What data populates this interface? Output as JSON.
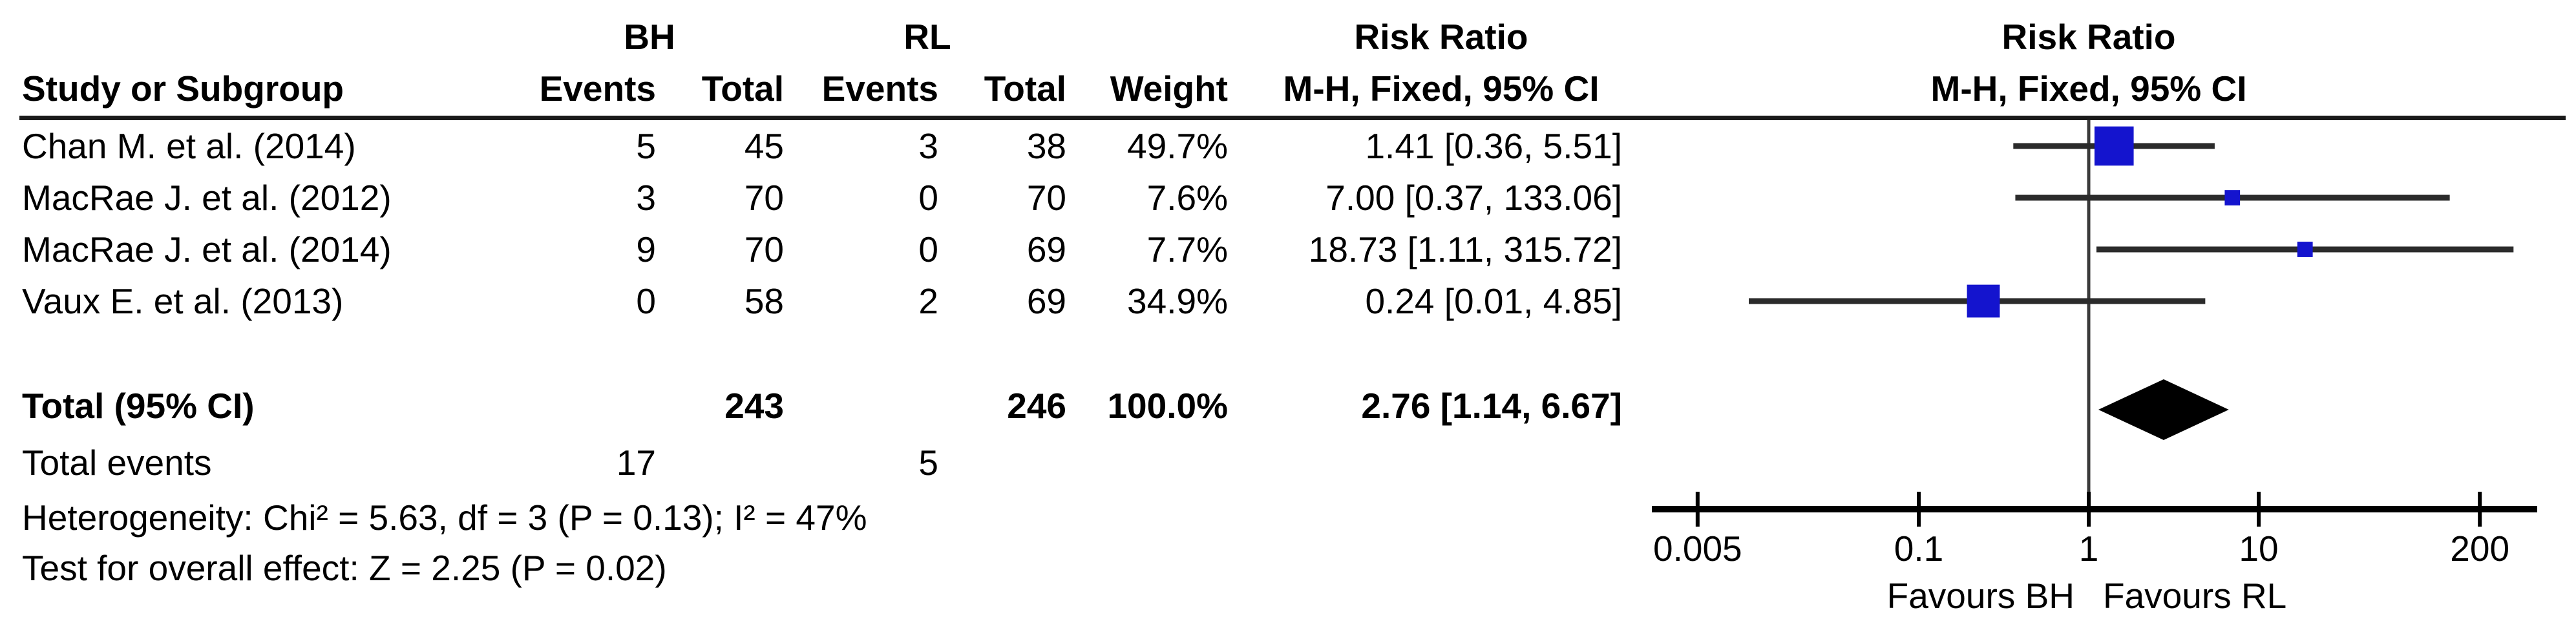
{
  "table": {
    "group_bh": "BH",
    "group_rl": "RL",
    "risk_ratio_header": "Risk Ratio",
    "ci_method_header": "M-H, Fixed, 95% CI",
    "plot_title": "Risk Ratio",
    "plot_subtitle": "M-H, Fixed, 95% CI",
    "col_study": "Study or Subgroup",
    "col_events": "Events",
    "col_total": "Total",
    "col_weight": "Weight",
    "rows": [
      {
        "study": "Chan M. et al. (2014)",
        "events_bh": "5",
        "total_bh": "45",
        "events_rl": "3",
        "total_rl": "38",
        "weight": "49.7%",
        "ci": "1.41 [0.36, 5.51]"
      },
      {
        "study": "MacRae J. et al. (2012)",
        "events_bh": "3",
        "total_bh": "70",
        "events_rl": "0",
        "total_rl": "70",
        "weight": "7.6%",
        "ci": "7.00 [0.37, 133.06]"
      },
      {
        "study": "MacRae J. et al. (2014)",
        "events_bh": "9",
        "total_bh": "70",
        "events_rl": "0",
        "total_rl": "69",
        "weight": "7.7%",
        "ci": "18.73 [1.11, 315.72]"
      },
      {
        "study": "Vaux E. et al. (2013)",
        "events_bh": "0",
        "total_bh": "58",
        "events_rl": "2",
        "total_rl": "69",
        "weight": "34.9%",
        "ci": "0.24 [0.01, 4.85]"
      }
    ],
    "total_row": {
      "label": "Total (95% CI)",
      "total_bh": "243",
      "total_rl": "246",
      "weight": "100.0%",
      "ci": "2.76 [1.14, 6.67]"
    },
    "total_events": {
      "label": "Total events",
      "bh": "17",
      "rl": "5"
    },
    "heterogeneity": "Heterogeneity: Chi² = 5.63, df = 3 (P = 0.13); I² = 47%",
    "overall_effect": "Test for overall effect: Z = 2.25 (P = 0.02)"
  },
  "chart_data": {
    "type": "scatter",
    "subtype": "forest-plot",
    "title": "Risk Ratio",
    "subtitle": "M-H, Fixed, 95% CI",
    "x_scale": "log10",
    "x_ticks": [
      0.005,
      0.1,
      1,
      10,
      200
    ],
    "x_tick_labels": [
      "0.005",
      "0.1",
      "1",
      "10",
      "200"
    ],
    "null_line_value": 1,
    "favours_left": "Favours BH",
    "favours_right": "Favours RL",
    "studies": [
      {
        "name": "Chan M. et al. (2014)",
        "rr": 1.41,
        "ci_low": 0.36,
        "ci_high": 5.51,
        "weight_pct": 49.7
      },
      {
        "name": "MacRae J. et al. (2012)",
        "rr": 7.0,
        "ci_low": 0.37,
        "ci_high": 133.06,
        "weight_pct": 7.6
      },
      {
        "name": "MacRae J. et al. (2014)",
        "rr": 18.73,
        "ci_low": 1.11,
        "ci_high": 315.72,
        "weight_pct": 7.7
      },
      {
        "name": "Vaux E. et al. (2013)",
        "rr": 0.24,
        "ci_low": 0.01,
        "ci_high": 4.85,
        "weight_pct": 34.9
      }
    ],
    "pooled": {
      "label": "Total (95% CI)",
      "rr": 2.76,
      "ci_low": 1.14,
      "ci_high": 6.67,
      "weight_pct": 100.0
    },
    "colors": {
      "marker": "#1414CE",
      "ci_line": "#2b2b2b",
      "diamond": "#000000",
      "axis": "#000000",
      "null_line": "#3a3a3a"
    }
  }
}
